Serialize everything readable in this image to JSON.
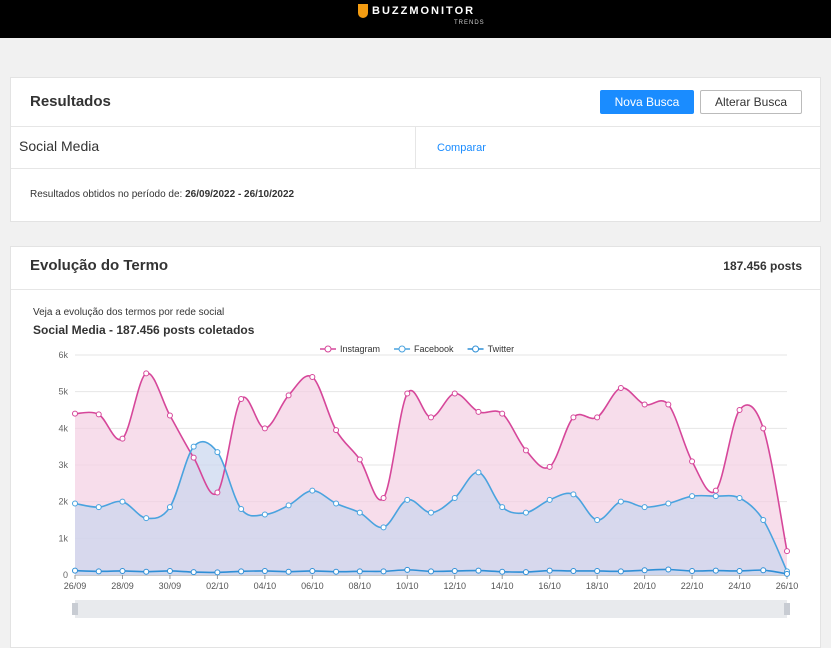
{
  "header": {
    "brand": "BUZZMONITOR",
    "sub": "TRENDS"
  },
  "results": {
    "title": "Resultados",
    "new_search": "Nova Busca",
    "edit_search": "Alterar Busca",
    "term": "Social Media",
    "compare": "Comparar",
    "period_label": "Resultados obtidos no período de:",
    "period": "26/09/2022 - 26/10/2022"
  },
  "evolution": {
    "title": "Evolução do Termo",
    "total": "187.456 posts",
    "subtitle": "Veja a evolução dos termos por rede social"
  },
  "chart_data": {
    "type": "line",
    "title": "Social Media - 187.456 posts coletados",
    "categories": [
      "26/09",
      null,
      "28/09",
      null,
      "30/09",
      null,
      "02/10",
      null,
      "04/10",
      null,
      "06/10",
      null,
      "08/10",
      null,
      "10/10",
      null,
      "12/10",
      null,
      "14/10",
      null,
      "16/10",
      null,
      "18/10",
      null,
      "20/10",
      null,
      "22/10",
      null,
      "24/10",
      null,
      "26/10"
    ],
    "ylim": [
      0,
      6000
    ],
    "yticks": [
      0,
      {
        "value": 1000,
        "label": "1k"
      },
      {
        "value": 2000,
        "label": "2k"
      },
      {
        "value": 3000,
        "label": "3k"
      },
      {
        "value": 4000,
        "label": "4k"
      },
      {
        "value": 5000,
        "label": "5k"
      },
      {
        "value": 6000,
        "label": "6k"
      }
    ],
    "series": [
      {
        "name": "Instagram",
        "color": "#d6479a",
        "values": [
          4400,
          4380,
          3720,
          5500,
          4350,
          3200,
          2250,
          4800,
          4000,
          4900,
          5400,
          3950,
          3150,
          2100,
          4950,
          4300,
          4950,
          4450,
          4400,
          3400,
          2950,
          4300,
          4300,
          5100,
          4650,
          4650,
          3100,
          2300,
          4500,
          4000,
          650
        ]
      },
      {
        "name": "Facebook",
        "color": "#4aa3df",
        "values": [
          1950,
          1850,
          2000,
          1550,
          1850,
          3500,
          3350,
          1800,
          1650,
          1900,
          2300,
          1950,
          1700,
          1300,
          2050,
          1700,
          2100,
          2800,
          1850,
          1700,
          2050,
          2200,
          1500,
          2000,
          1850,
          1950,
          2150,
          2150,
          2100,
          1500,
          100
        ]
      },
      {
        "name": "Twitter",
        "color": "#2f8fd6",
        "values": [
          120,
          100,
          110,
          90,
          110,
          80,
          70,
          100,
          110,
          90,
          110,
          90,
          100,
          100,
          140,
          100,
          110,
          120,
          90,
          80,
          120,
          110,
          110,
          100,
          130,
          150,
          110,
          120,
          110,
          130,
          30
        ]
      }
    ]
  }
}
